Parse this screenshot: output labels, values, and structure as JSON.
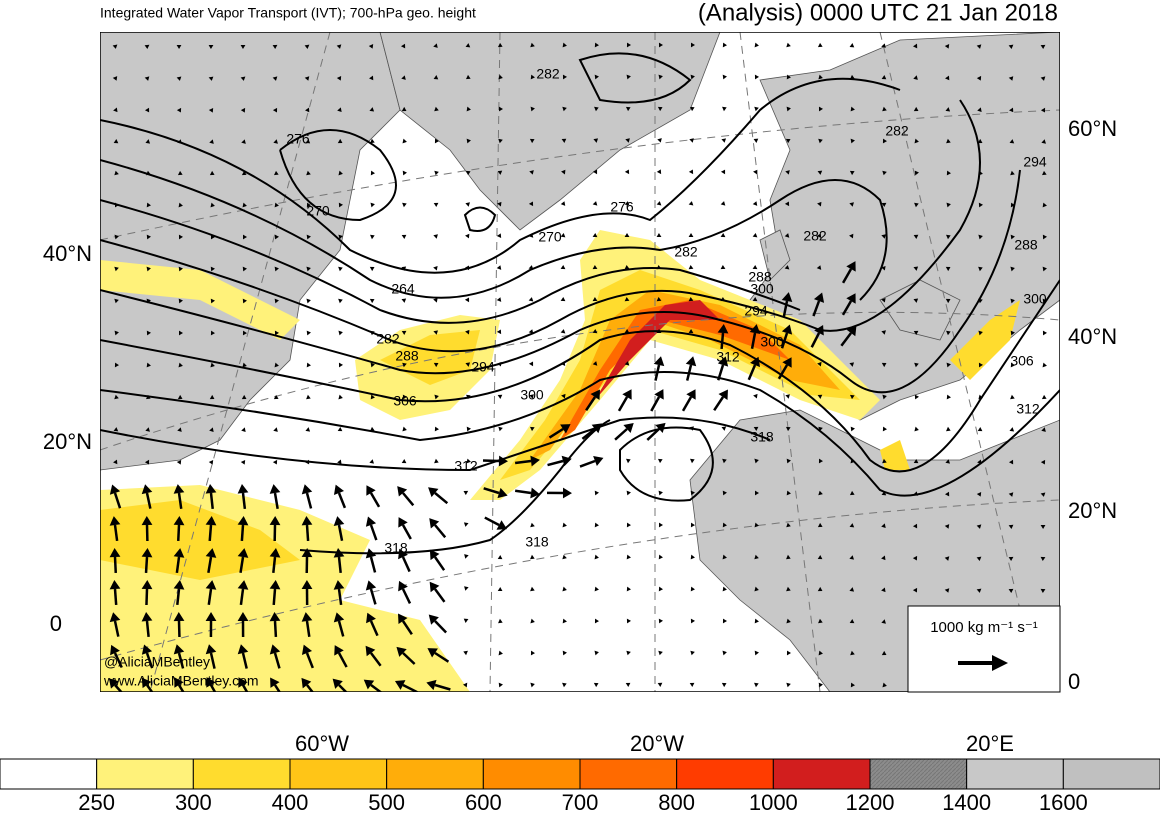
{
  "header": {
    "title": "Integrated Water Vapor Transport (IVT); 700-hPa geo. height",
    "subtitle": "(Analysis) 0000 UTC 21 Jan 2018"
  },
  "lat_labels_left": [
    "40°N",
    "20°N",
    "0"
  ],
  "lat_labels_right": [
    "60°N",
    "40°N",
    "20°N",
    "0"
  ],
  "lon_labels": [
    "60°W",
    "20°W",
    "20°E"
  ],
  "contour_labels": [
    "282",
    "276",
    "270",
    "276",
    "270",
    "282",
    "282",
    "294",
    "282",
    "288",
    "264",
    "288",
    "300",
    "294",
    "300",
    "312",
    "300",
    "306",
    "312",
    "282",
    "288",
    "294",
    "300",
    "306",
    "312",
    "318",
    "318",
    "318"
  ],
  "reference_vector": "1000 kg m⁻¹ s⁻¹",
  "credits": [
    "@AliciaMBentley",
    "www.AliciaMBentley.com"
  ],
  "colorbar": {
    "ticks": [
      250,
      300,
      400,
      500,
      600,
      700,
      800,
      1000,
      1200,
      1400,
      1600
    ],
    "colors": [
      "#ffffff",
      "#fff27a",
      "#ffdc2e",
      "#ffc517",
      "#ffad0a",
      "#ff8c00",
      "#ff6a00",
      "#ff3c00",
      "#d21e1e",
      "#8c8c8c",
      "#c8c8c8",
      "#c0c0c0"
    ]
  }
}
